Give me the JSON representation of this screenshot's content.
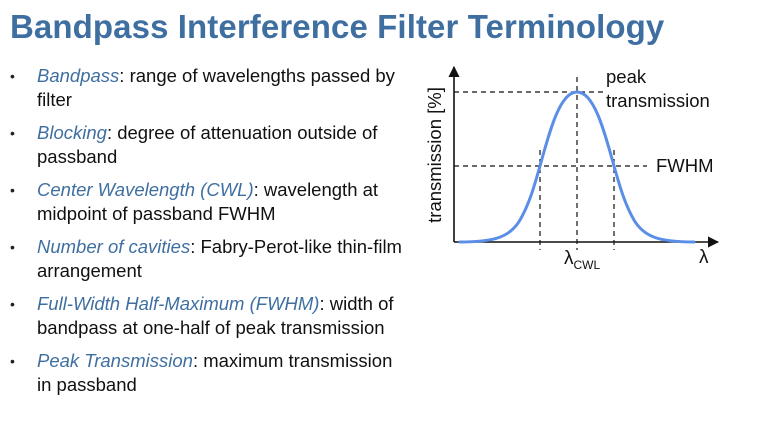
{
  "title": "Bandpass Interference Filter Terminology",
  "bullets": [
    {
      "term": "Bandpass",
      "desc": ": range of wavelengths passed by filter"
    },
    {
      "term": "Blocking",
      "desc": ": degree of attenuation outside of passband"
    },
    {
      "term": "Center Wavelength (CWL)",
      "desc": ": wavelength at midpoint of passband FWHM"
    },
    {
      "term": "Number of cavities",
      "desc": ": Fabry-Perot-like thin-film arrangement"
    },
    {
      "term": "Full-Width Half-Maximum (FWHM)",
      "desc": ": width of bandpass at one-half of peak transmission"
    },
    {
      "term": "Peak Transmission",
      "desc": ": maximum transmission in passband"
    }
  ],
  "diagram": {
    "y_axis_label": "transmission [%]",
    "x_axis_label": "λ",
    "peak_label_line1": "peak",
    "peak_label_line2": "transmission",
    "fwhm_label": "FWHM",
    "cwl_symbol": "λ",
    "cwl_subscript": "CWL",
    "colors": {
      "curve": "#5b8ee6",
      "axes": "#111111",
      "title": "#3f6fa0"
    }
  }
}
